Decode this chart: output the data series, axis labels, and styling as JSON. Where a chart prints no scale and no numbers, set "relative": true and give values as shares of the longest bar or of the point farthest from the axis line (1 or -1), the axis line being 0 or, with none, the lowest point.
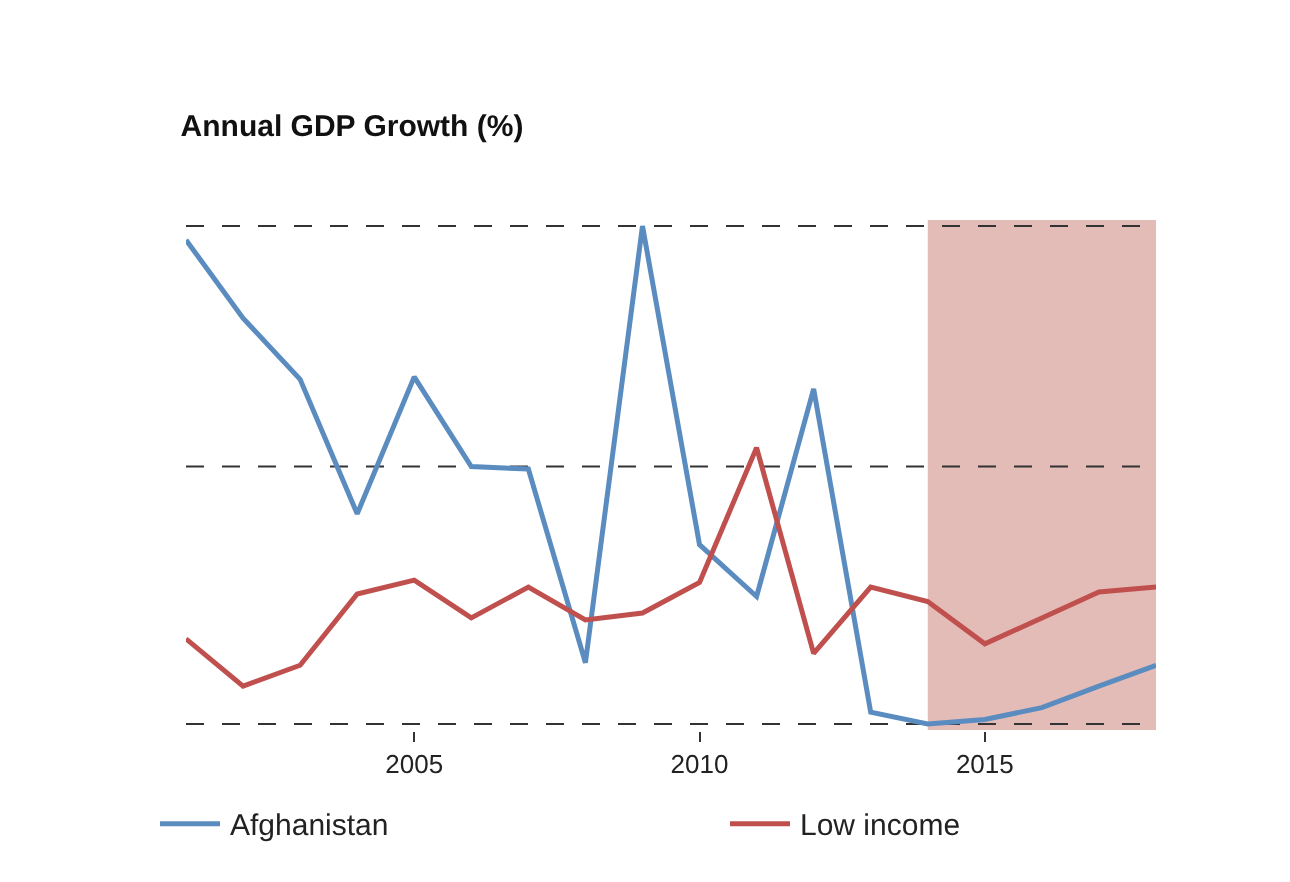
{
  "chart_data": {
    "type": "line",
    "title": "Annual GDP Growth (%)",
    "relative": true,
    "x": [
      2001,
      2002,
      2003,
      2004,
      2005,
      2006,
      2007,
      2008,
      2009,
      2010,
      2011,
      2012,
      2013,
      2014,
      2015,
      2016,
      2017,
      2018
    ],
    "xlim": [
      2001,
      2018
    ],
    "xticks": [
      2005,
      2010,
      2015
    ],
    "series": [
      {
        "name": "Afghanistan",
        "color": "#5b8cc0",
        "values": [
          0.972,
          0.815,
          0.692,
          0.422,
          0.697,
          0.517,
          0.512,
          0.123,
          1,
          0.36,
          0.256,
          0.673,
          0.024,
          0,
          0.009,
          0.033,
          0.076,
          0.118
        ]
      },
      {
        "name": "Low income",
        "color": "#c0504d",
        "values": [
          0.171,
          0.076,
          0.118,
          0.261,
          0.289,
          0.213,
          0.275,
          0.209,
          0.223,
          0.284,
          0.555,
          0.142,
          0.275,
          0.246,
          0.161,
          0.213,
          0.265,
          0.275
        ]
      }
    ],
    "bands": [
      {
        "axis": "x",
        "from": 2014,
        "to": 2018,
        "color": "#e3bcb8"
      }
    ],
    "ref_lines": [
      {
        "axis": "y",
        "value": 0.517,
        "color": "#333333",
        "line_style": "dashed"
      }
    ],
    "grid": "y",
    "legend": "bottom",
    "marker": "none",
    "line_style": "solid"
  }
}
